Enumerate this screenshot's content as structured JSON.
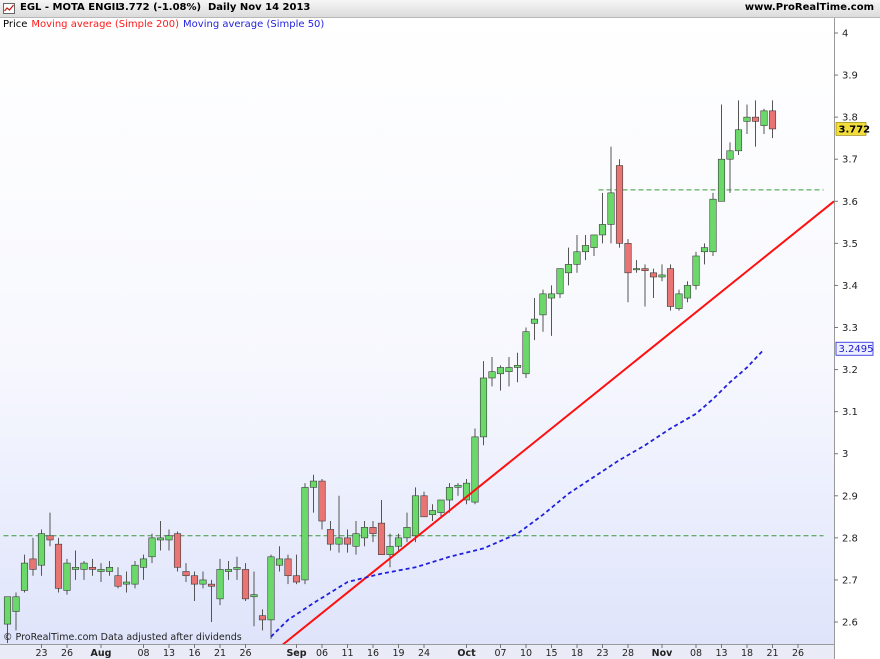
{
  "header": {
    "title": "EGL - MOTA ENGIL",
    "price": "3.772 (-1.08%)",
    "period_date": "Daily  Nov 14 2013",
    "site": "www.ProRealTime.com"
  },
  "legend": {
    "price": "Price",
    "ma200": "Moving average (Simple 200)",
    "ma50": "Moving average (Simple 50)"
  },
  "footer": "© ProRealTime.com  Data adjusted after dividends",
  "colors": {
    "up": "#6ad96a",
    "down": "#e87474",
    "ma200": "#ff1010",
    "ma50": "#2020dd",
    "ref_line": "#3a9a3a",
    "last_price_bg": "#f2dd3a",
    "ma50_label_border": "#2020dd"
  },
  "chart_data": {
    "type": "candlestick",
    "ylim": [
      2.55,
      4.03
    ],
    "y_ticks": [
      2.6,
      2.7,
      2.8,
      2.9,
      3,
      3.1,
      3.2,
      3.3,
      3.4,
      3.5,
      3.6,
      3.7,
      3.8,
      3.9,
      4
    ],
    "y_tick_labels": [
      "2.6",
      "2.7",
      "2.8",
      "2.9",
      "3",
      "3.1",
      "3.2",
      "3.3",
      "3.4",
      "3.5",
      "3.6",
      "3.7",
      "3.8",
      "3.9",
      "4"
    ],
    "x_ticks": [
      {
        "i": 4,
        "label": "23",
        "major": false
      },
      {
        "i": 7,
        "label": "26",
        "major": false
      },
      {
        "i": 11,
        "label": "Aug",
        "major": true
      },
      {
        "i": 16,
        "label": "08",
        "major": false
      },
      {
        "i": 19,
        "label": "13",
        "major": false
      },
      {
        "i": 22,
        "label": "16",
        "major": false
      },
      {
        "i": 25,
        "label": "21",
        "major": false
      },
      {
        "i": 28,
        "label": "26",
        "major": false
      },
      {
        "i": 34,
        "label": "Sep",
        "major": true
      },
      {
        "i": 37,
        "label": "06",
        "major": false
      },
      {
        "i": 40,
        "label": "11",
        "major": false
      },
      {
        "i": 43,
        "label": "16",
        "major": false
      },
      {
        "i": 46,
        "label": "19",
        "major": false
      },
      {
        "i": 49,
        "label": "24",
        "major": false
      },
      {
        "i": 54,
        "label": "Oct",
        "major": true
      },
      {
        "i": 58,
        "label": "07",
        "major": false
      },
      {
        "i": 61,
        "label": "10",
        "major": false
      },
      {
        "i": 64,
        "label": "15",
        "major": false
      },
      {
        "i": 67,
        "label": "18",
        "major": false
      },
      {
        "i": 70,
        "label": "23",
        "major": false
      },
      {
        "i": 73,
        "label": "28",
        "major": false
      },
      {
        "i": 77,
        "label": "Nov",
        "major": true
      },
      {
        "i": 81,
        "label": "08",
        "major": false
      },
      {
        "i": 84,
        "label": "13",
        "major": false
      },
      {
        "i": 87,
        "label": "18",
        "major": false
      },
      {
        "i": 90,
        "label": "21",
        "major": false
      },
      {
        "i": 93,
        "label": "26",
        "major": false
      }
    ],
    "candles": [
      {
        "o": 2.595,
        "h": 2.66,
        "l": 2.55,
        "c": 2.66
      },
      {
        "o": 2.625,
        "h": 2.67,
        "l": 2.58,
        "c": 2.66
      },
      {
        "o": 2.675,
        "h": 2.76,
        "l": 2.67,
        "c": 2.74
      },
      {
        "o": 2.75,
        "h": 2.8,
        "l": 2.71,
        "c": 2.725
      },
      {
        "o": 2.735,
        "h": 2.82,
        "l": 2.71,
        "c": 2.81
      },
      {
        "o": 2.805,
        "h": 2.86,
        "l": 2.78,
        "c": 2.795
      },
      {
        "o": 2.785,
        "h": 2.8,
        "l": 2.67,
        "c": 2.68
      },
      {
        "o": 2.675,
        "h": 2.75,
        "l": 2.665,
        "c": 2.74
      },
      {
        "o": 2.725,
        "h": 2.77,
        "l": 2.7,
        "c": 2.73
      },
      {
        "o": 2.725,
        "h": 2.745,
        "l": 2.7,
        "c": 2.74
      },
      {
        "o": 2.73,
        "h": 2.75,
        "l": 2.71,
        "c": 2.725
      },
      {
        "o": 2.72,
        "h": 2.74,
        "l": 2.695,
        "c": 2.725
      },
      {
        "o": 2.72,
        "h": 2.745,
        "l": 2.71,
        "c": 2.73
      },
      {
        "o": 2.71,
        "h": 2.73,
        "l": 2.68,
        "c": 2.685
      },
      {
        "o": 2.69,
        "h": 2.72,
        "l": 2.67,
        "c": 2.695
      },
      {
        "o": 2.69,
        "h": 2.745,
        "l": 2.68,
        "c": 2.735
      },
      {
        "o": 2.73,
        "h": 2.76,
        "l": 2.7,
        "c": 2.75
      },
      {
        "o": 2.755,
        "h": 2.81,
        "l": 2.74,
        "c": 2.8
      },
      {
        "o": 2.795,
        "h": 2.84,
        "l": 2.77,
        "c": 2.8
      },
      {
        "o": 2.795,
        "h": 2.82,
        "l": 2.77,
        "c": 2.805
      },
      {
        "o": 2.81,
        "h": 2.815,
        "l": 2.72,
        "c": 2.73
      },
      {
        "o": 2.72,
        "h": 2.74,
        "l": 2.695,
        "c": 2.71
      },
      {
        "o": 2.71,
        "h": 2.72,
        "l": 2.65,
        "c": 2.69
      },
      {
        "o": 2.69,
        "h": 2.72,
        "l": 2.68,
        "c": 2.7
      },
      {
        "o": 2.69,
        "h": 2.7,
        "l": 2.6,
        "c": 2.685
      },
      {
        "o": 2.655,
        "h": 2.75,
        "l": 2.64,
        "c": 2.725
      },
      {
        "o": 2.72,
        "h": 2.745,
        "l": 2.7,
        "c": 2.725
      },
      {
        "o": 2.725,
        "h": 2.755,
        "l": 2.7,
        "c": 2.73
      },
      {
        "o": 2.725,
        "h": 2.74,
        "l": 2.65,
        "c": 2.655
      },
      {
        "o": 2.66,
        "h": 2.72,
        "l": 2.59,
        "c": 2.665
      },
      {
        "o": 2.615,
        "h": 2.63,
        "l": 2.58,
        "c": 2.605
      },
      {
        "o": 2.605,
        "h": 2.76,
        "l": 2.56,
        "c": 2.755
      },
      {
        "o": 2.735,
        "h": 2.78,
        "l": 2.72,
        "c": 2.75
      },
      {
        "o": 2.75,
        "h": 2.76,
        "l": 2.69,
        "c": 2.71
      },
      {
        "o": 2.71,
        "h": 2.76,
        "l": 2.69,
        "c": 2.695
      },
      {
        "o": 2.7,
        "h": 2.93,
        "l": 2.69,
        "c": 2.92
      },
      {
        "o": 2.92,
        "h": 2.95,
        "l": 2.86,
        "c": 2.935
      },
      {
        "o": 2.935,
        "h": 2.94,
        "l": 2.82,
        "c": 2.84
      },
      {
        "o": 2.82,
        "h": 2.84,
        "l": 2.77,
        "c": 2.785
      },
      {
        "o": 2.785,
        "h": 2.9,
        "l": 2.765,
        "c": 2.8
      },
      {
        "o": 2.8,
        "h": 2.82,
        "l": 2.765,
        "c": 2.785
      },
      {
        "o": 2.78,
        "h": 2.84,
        "l": 2.76,
        "c": 2.81
      },
      {
        "o": 2.8,
        "h": 2.84,
        "l": 2.78,
        "c": 2.825
      },
      {
        "o": 2.825,
        "h": 2.84,
        "l": 2.79,
        "c": 2.81
      },
      {
        "o": 2.835,
        "h": 2.89,
        "l": 2.76,
        "c": 2.76
      },
      {
        "o": 2.76,
        "h": 2.81,
        "l": 2.73,
        "c": 2.78
      },
      {
        "o": 2.78,
        "h": 2.81,
        "l": 2.77,
        "c": 2.8
      },
      {
        "o": 2.8,
        "h": 2.86,
        "l": 2.79,
        "c": 2.825
      },
      {
        "o": 2.805,
        "h": 2.92,
        "l": 2.79,
        "c": 2.9
      },
      {
        "o": 2.9,
        "h": 2.91,
        "l": 2.86,
        "c": 2.85
      },
      {
        "o": 2.855,
        "h": 2.88,
        "l": 2.84,
        "c": 2.865
      },
      {
        "o": 2.86,
        "h": 2.89,
        "l": 2.85,
        "c": 2.89
      },
      {
        "o": 2.89,
        "h": 2.93,
        "l": 2.86,
        "c": 2.92
      },
      {
        "o": 2.92,
        "h": 2.93,
        "l": 2.9,
        "c": 2.925
      },
      {
        "o": 2.89,
        "h": 2.94,
        "l": 2.88,
        "c": 2.93
      },
      {
        "o": 2.885,
        "h": 3.06,
        "l": 2.88,
        "c": 3.04
      },
      {
        "o": 3.04,
        "h": 3.22,
        "l": 3.02,
        "c": 3.18
      },
      {
        "o": 3.18,
        "h": 3.23,
        "l": 3.16,
        "c": 3.195
      },
      {
        "o": 3.19,
        "h": 3.21,
        "l": 3.15,
        "c": 3.205
      },
      {
        "o": 3.195,
        "h": 3.23,
        "l": 3.16,
        "c": 3.205
      },
      {
        "o": 3.205,
        "h": 3.24,
        "l": 3.17,
        "c": 3.21
      },
      {
        "o": 3.19,
        "h": 3.3,
        "l": 3.18,
        "c": 3.29
      },
      {
        "o": 3.31,
        "h": 3.37,
        "l": 3.27,
        "c": 3.32
      },
      {
        "o": 3.33,
        "h": 3.39,
        "l": 3.29,
        "c": 3.38
      },
      {
        "o": 3.37,
        "h": 3.4,
        "l": 3.28,
        "c": 3.38
      },
      {
        "o": 3.38,
        "h": 3.43,
        "l": 3.37,
        "c": 3.44
      },
      {
        "o": 3.43,
        "h": 3.49,
        "l": 3.4,
        "c": 3.45
      },
      {
        "o": 3.45,
        "h": 3.52,
        "l": 3.43,
        "c": 3.48
      },
      {
        "o": 3.48,
        "h": 3.52,
        "l": 3.46,
        "c": 3.495
      },
      {
        "o": 3.49,
        "h": 3.51,
        "l": 3.47,
        "c": 3.52
      },
      {
        "o": 3.52,
        "h": 3.62,
        "l": 3.5,
        "c": 3.545
      },
      {
        "o": 3.545,
        "h": 3.73,
        "l": 3.5,
        "c": 3.62
      },
      {
        "o": 3.685,
        "h": 3.7,
        "l": 3.49,
        "c": 3.5
      },
      {
        "o": 3.5,
        "h": 3.51,
        "l": 3.36,
        "c": 3.43
      },
      {
        "o": 3.44,
        "h": 3.46,
        "l": 3.43,
        "c": 3.44
      },
      {
        "o": 3.44,
        "h": 3.45,
        "l": 3.35,
        "c": 3.435
      },
      {
        "o": 3.43,
        "h": 3.44,
        "l": 3.37,
        "c": 3.42
      },
      {
        "o": 3.42,
        "h": 3.45,
        "l": 3.41,
        "c": 3.425
      },
      {
        "o": 3.44,
        "h": 3.45,
        "l": 3.34,
        "c": 3.35
      },
      {
        "o": 3.345,
        "h": 3.39,
        "l": 3.34,
        "c": 3.38
      },
      {
        "o": 3.37,
        "h": 3.41,
        "l": 3.36,
        "c": 3.4
      },
      {
        "o": 3.4,
        "h": 3.48,
        "l": 3.39,
        "c": 3.47
      },
      {
        "o": 3.48,
        "h": 3.5,
        "l": 3.45,
        "c": 3.49
      },
      {
        "o": 3.48,
        "h": 3.62,
        "l": 3.47,
        "c": 3.605
      },
      {
        "o": 3.6,
        "h": 3.83,
        "l": 3.6,
        "c": 3.7
      },
      {
        "o": 3.7,
        "h": 3.74,
        "l": 3.62,
        "c": 3.72
      },
      {
        "o": 3.72,
        "h": 3.84,
        "l": 3.71,
        "c": 3.77
      },
      {
        "o": 3.79,
        "h": 3.83,
        "l": 3.76,
        "c": 3.8
      },
      {
        "o": 3.8,
        "h": 3.84,
        "l": 3.73,
        "c": 3.79
      },
      {
        "o": 3.78,
        "h": 3.82,
        "l": 3.76,
        "c": 3.815
      },
      {
        "o": 3.815,
        "h": 3.84,
        "l": 3.75,
        "c": 3.772
      }
    ],
    "ma200": {
      "name": "Moving average (Simple 200)",
      "from": [
        32,
        2.54
      ],
      "to": [
        96,
        3.6
      ]
    },
    "ma50": {
      "name": "Moving average (Simple 50)",
      "points": [
        [
          31,
          2.565
        ],
        [
          33,
          2.605
        ],
        [
          36,
          2.645
        ],
        [
          40,
          2.695
        ],
        [
          44,
          2.715
        ],
        [
          48,
          2.73
        ],
        [
          52,
          2.755
        ],
        [
          56,
          2.775
        ],
        [
          60,
          2.81
        ],
        [
          63,
          2.855
        ],
        [
          66,
          2.905
        ],
        [
          69,
          2.945
        ],
        [
          72,
          2.985
        ],
        [
          75,
          3.02
        ],
        [
          78,
          3.06
        ],
        [
          81,
          3.095
        ],
        [
          83,
          3.13
        ],
        [
          85,
          3.17
        ],
        [
          87,
          3.205
        ],
        [
          89,
          3.248
        ]
      ]
    },
    "ref_lines": [
      {
        "y": 2.805,
        "from": 0,
        "to": 96
      },
      {
        "y": 3.627,
        "from": 70,
        "to": 96
      }
    ],
    "last_price_label": "3.772",
    "ma50_label": "3.2495"
  }
}
